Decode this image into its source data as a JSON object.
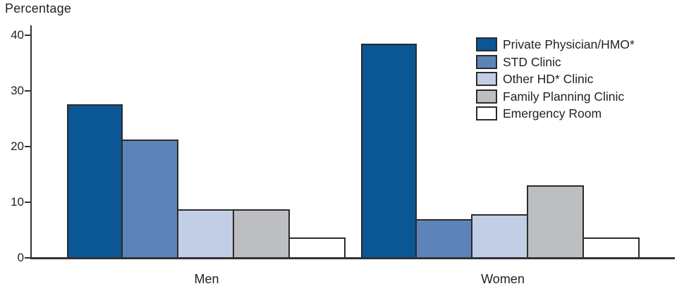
{
  "chart_data": {
    "type": "bar",
    "title": "",
    "ylabel": "Percentage",
    "xlabel": "",
    "categories": [
      "Men",
      "Women"
    ],
    "series": [
      {
        "name": "Private Physician/HMO*",
        "color": "#0B5694",
        "values": [
          27.6,
          38.5
        ]
      },
      {
        "name": "STD Clinic",
        "color": "#5C84B8",
        "values": [
          21.3,
          7.0
        ]
      },
      {
        "name": "Other HD* Clinic",
        "color": "#C2CEE6",
        "values": [
          8.7,
          7.9
        ]
      },
      {
        "name": "Family Planning Clinic",
        "color": "#BDBEC1",
        "values": [
          8.7,
          13.0
        ]
      },
      {
        "name": "Emergency Room",
        "color": "#FFFFFF",
        "values": [
          3.7,
          3.7
        ]
      }
    ],
    "ylim": [
      0,
      40
    ],
    "yticks": [
      0,
      10,
      20,
      30,
      40
    ],
    "legend_position": "upper right",
    "grid": false,
    "colors": {
      "bar_border": "#2B2B2B",
      "axis": "#333333",
      "text": "#231F20"
    }
  }
}
